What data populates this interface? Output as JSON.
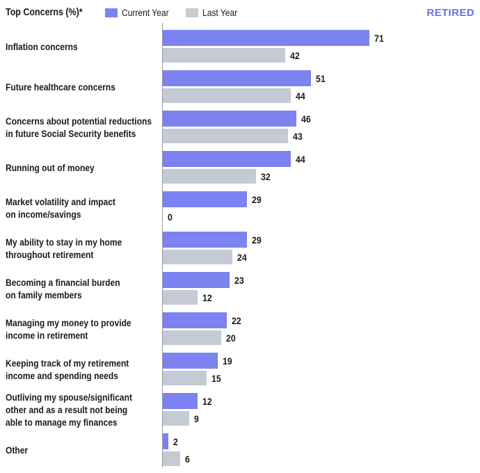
{
  "header": {
    "title": "Top Concerns (%)*",
    "legend": [
      {
        "label": "Current Year",
        "color": "#7C82EF"
      },
      {
        "label": "Last Year",
        "color": "#C4CBD4"
      }
    ],
    "tag": "RETIRED",
    "tag_color": "#6B6FE0"
  },
  "chart_data": {
    "type": "bar",
    "orientation": "horizontal",
    "title": "Top Concerns (%)*",
    "value_labels": true,
    "xlim": [
      0,
      100
    ],
    "grid": false,
    "legend_position": "top",
    "categories": [
      [
        "Inflation concerns"
      ],
      [
        "Future healthcare concerns"
      ],
      [
        "Concerns about potential reductions",
        "in future Social Security benefits"
      ],
      [
        "Running out of money"
      ],
      [
        "Market volatility and impact",
        "on income/savings"
      ],
      [
        "My ability to stay in my home",
        "throughout retirement"
      ],
      [
        "Becoming a financial burden",
        "on family members"
      ],
      [
        "Managing my money to provide",
        "income in retirement"
      ],
      [
        "Keeping track of my retirement",
        "income and spending needs"
      ],
      [
        "Outliving my spouse/significant",
        "other and as a result not being",
        "able to manage my finances"
      ],
      [
        "Other"
      ]
    ],
    "series": [
      {
        "name": "Current Year",
        "color": "#7C82EF",
        "values": [
          71,
          51,
          46,
          44,
          29,
          29,
          23,
          22,
          19,
          12,
          2
        ]
      },
      {
        "name": "Last Year",
        "color": "#C4CBD4",
        "values": [
          42,
          44,
          43,
          32,
          0,
          24,
          12,
          20,
          15,
          9,
          6
        ]
      }
    ]
  }
}
